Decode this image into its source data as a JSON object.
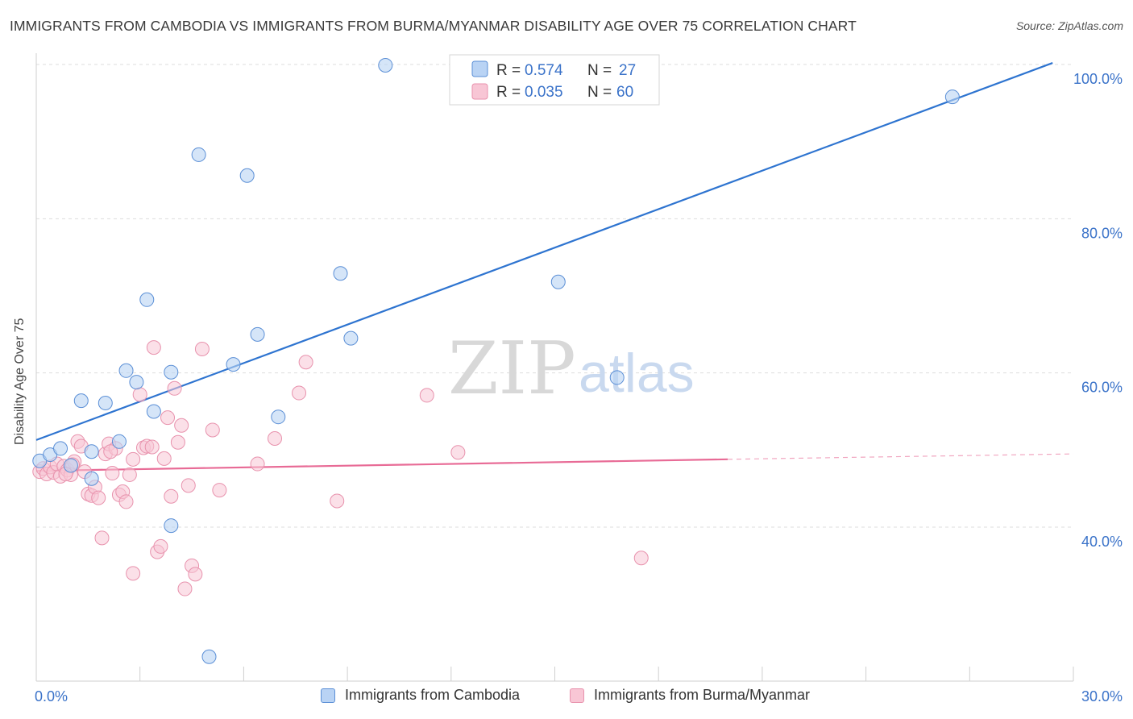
{
  "title": "IMMIGRANTS FROM CAMBODIA VS IMMIGRANTS FROM BURMA/MYANMAR DISABILITY AGE OVER 75 CORRELATION CHART",
  "source": "Source: ZipAtlas.com",
  "watermark": {
    "zip": "ZIP",
    "atlas": "atlas"
  },
  "colors": {
    "cambodia_fill": "#b9d3f4",
    "cambodia_stroke": "#5b8fd6",
    "cambodia_line": "#2e74d0",
    "burma_fill": "#f8c6d5",
    "burma_stroke": "#e892ad",
    "burma_line": "#e86b96",
    "tick_label": "#3b73c9",
    "grid": "#dddddd"
  },
  "legend": {
    "rows": [
      {
        "r_label": "R =",
        "r_value": "0.574",
        "n_label": "N =",
        "n_value": "27"
      },
      {
        "r_label": "R =",
        "r_value": "0.035",
        "n_label": "N =",
        "n_value": "60"
      }
    ]
  },
  "bottom_legend": {
    "cambodia": "Immigrants from Cambodia",
    "burma": "Immigrants from Burma/Myanmar"
  },
  "chart_data": {
    "type": "scatter",
    "title": "IMMIGRANTS FROM CAMBODIA VS IMMIGRANTS FROM BURMA/MYANMAR DISABILITY AGE OVER 75 CORRELATION CHART",
    "xlabel": "",
    "ylabel": "Disability Age Over 75",
    "xlim": [
      0,
      30
    ],
    "ylim": [
      20,
      102
    ],
    "x_tick_labels": [
      {
        "value": 0,
        "label": "0.0%"
      },
      {
        "value": 30,
        "label": "30.0%"
      }
    ],
    "y_tick_labels": [
      {
        "value": 40,
        "label": "40.0%"
      },
      {
        "value": 60,
        "label": "60.0%"
      },
      {
        "value": 80,
        "label": "80.0%"
      },
      {
        "value": 100,
        "label": "100.0%"
      }
    ],
    "grid": true,
    "legend_position": "top-center",
    "series": [
      {
        "name": "Immigrants from Cambodia",
        "R": 0.574,
        "N": 27,
        "trend": {
          "x0": 0,
          "y0": 51.3,
          "x1": 29.4,
          "y1": 100.2
        },
        "points": [
          [
            0.1,
            48.6
          ],
          [
            0.4,
            49.4
          ],
          [
            0.7,
            50.2
          ],
          [
            1.0,
            48.0
          ],
          [
            1.3,
            56.4
          ],
          [
            1.6,
            49.8
          ],
          [
            1.6,
            46.3
          ],
          [
            2.0,
            56.1
          ],
          [
            2.4,
            51.1
          ],
          [
            2.6,
            60.3
          ],
          [
            2.9,
            58.8
          ],
          [
            3.2,
            69.5
          ],
          [
            3.4,
            55.0
          ],
          [
            3.9,
            40.2
          ],
          [
            3.9,
            60.1
          ],
          [
            4.7,
            88.3
          ],
          [
            5.0,
            23.2
          ],
          [
            5.7,
            61.1
          ],
          [
            6.1,
            85.6
          ],
          [
            6.4,
            65.0
          ],
          [
            7.0,
            54.3
          ],
          [
            8.8,
            72.9
          ],
          [
            9.1,
            64.5
          ],
          [
            10.1,
            99.9
          ],
          [
            15.1,
            71.8
          ],
          [
            16.8,
            59.4
          ],
          [
            26.5,
            95.8
          ]
        ]
      },
      {
        "name": "Immigrants from Burma/Myanmar",
        "R": 0.035,
        "N": 60,
        "trend": {
          "x0": 0,
          "y0": 47.3,
          "x1": 20.0,
          "y1": 48.8,
          "dashed_to_x": 30,
          "dashed_to_y": 49.5
        },
        "points": [
          [
            0.1,
            47.2
          ],
          [
            0.2,
            47.6
          ],
          [
            0.3,
            46.9
          ],
          [
            0.4,
            47.8
          ],
          [
            0.5,
            47.1
          ],
          [
            0.6,
            48.2
          ],
          [
            0.7,
            46.6
          ],
          [
            0.8,
            47.9
          ],
          [
            0.9,
            47.4
          ],
          [
            1.0,
            46.8
          ],
          [
            1.1,
            48.5
          ],
          [
            1.2,
            51.1
          ],
          [
            1.3,
            50.5
          ],
          [
            1.4,
            47.2
          ],
          [
            1.5,
            44.3
          ],
          [
            1.6,
            44.1
          ],
          [
            1.7,
            45.2
          ],
          [
            1.8,
            43.8
          ],
          [
            1.9,
            38.6
          ],
          [
            2.0,
            49.5
          ],
          [
            2.1,
            50.8
          ],
          [
            2.2,
            47.0
          ],
          [
            2.3,
            50.2
          ],
          [
            2.4,
            44.2
          ],
          [
            2.5,
            44.6
          ],
          [
            2.6,
            43.3
          ],
          [
            2.7,
            46.8
          ],
          [
            2.8,
            48.8
          ],
          [
            2.8,
            34.0
          ],
          [
            3.0,
            57.2
          ],
          [
            3.1,
            50.3
          ],
          [
            3.2,
            50.5
          ],
          [
            3.4,
            63.3
          ],
          [
            3.5,
            36.8
          ],
          [
            3.6,
            37.5
          ],
          [
            3.7,
            48.9
          ],
          [
            3.8,
            54.2
          ],
          [
            3.9,
            44.0
          ],
          [
            4.0,
            58.0
          ],
          [
            4.2,
            53.2
          ],
          [
            4.3,
            32.0
          ],
          [
            4.4,
            45.4
          ],
          [
            4.5,
            35.0
          ],
          [
            4.6,
            33.9
          ],
          [
            4.8,
            63.1
          ],
          [
            5.1,
            52.6
          ],
          [
            5.3,
            44.8
          ],
          [
            6.4,
            48.2
          ],
          [
            6.9,
            51.5
          ],
          [
            7.6,
            57.4
          ],
          [
            7.8,
            61.4
          ],
          [
            8.7,
            43.4
          ],
          [
            11.3,
            57.1
          ],
          [
            12.2,
            49.7
          ],
          [
            17.5,
            36.0
          ],
          [
            1.05,
            48.1
          ],
          [
            2.15,
            49.8
          ],
          [
            3.35,
            50.4
          ],
          [
            0.85,
            46.9
          ],
          [
            4.1,
            51.0
          ]
        ]
      }
    ]
  }
}
